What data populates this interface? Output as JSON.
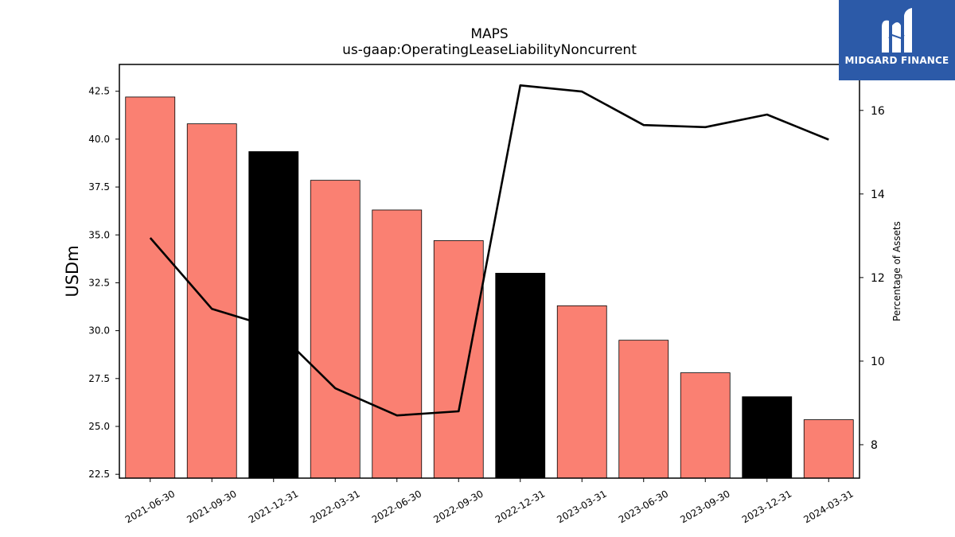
{
  "brand": {
    "name": "MIDGARD FINANCE",
    "bg_color": "#2c5aa8",
    "mark_icon": "midgard-m-logo-icon"
  },
  "chart_data": {
    "type": "bar",
    "title": "MAPS",
    "subtitle": "us-gaap:OperatingLeaseLiabilityNoncurrent",
    "ylabel": "USDm",
    "y2label": "Percentage of Assets",
    "ylim": [
      22.3,
      43.9
    ],
    "y2lim": [
      7.2,
      17.1
    ],
    "yticks": [
      "22.5",
      "25.0",
      "27.5",
      "30.0",
      "32.5",
      "35.0",
      "37.5",
      "40.0",
      "42.5"
    ],
    "y2ticks": [
      "8",
      "10",
      "12",
      "14",
      "16"
    ],
    "grid": false,
    "categories": [
      "2021-06-30",
      "2021-09-30",
      "2021-12-31",
      "2022-03-31",
      "2022-06-30",
      "2022-09-30",
      "2022-12-31",
      "2023-03-31",
      "2023-06-30",
      "2023-09-30",
      "2023-12-31",
      "2024-03-31"
    ],
    "series": [
      {
        "type": "bar",
        "axis": "left",
        "values": [
          42.2,
          40.8,
          39.35,
          37.85,
          36.3,
          34.7,
          33.0,
          31.3,
          29.5,
          27.8,
          26.55,
          25.35
        ],
        "colors": [
          "#fa8072",
          "#fa8072",
          "#000000",
          "#fa8072",
          "#fa8072",
          "#fa8072",
          "#000000",
          "#fa8072",
          "#fa8072",
          "#fa8072",
          "#000000",
          "#fa8072"
        ]
      },
      {
        "type": "line",
        "axis": "right",
        "values": [
          12.95,
          11.25,
          10.8,
          9.35,
          8.7,
          8.8,
          16.6,
          16.45,
          15.65,
          15.6,
          15.9,
          15.3
        ],
        "color": "#000000"
      }
    ]
  }
}
